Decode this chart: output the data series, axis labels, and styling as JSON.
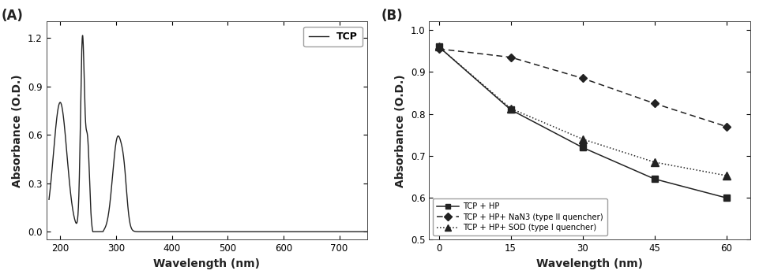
{
  "panel_A": {
    "label": "(A)",
    "xlabel": "Wavelength (nm)",
    "ylabel": "Absorbance (O.D.)",
    "xlim": [
      175,
      750
    ],
    "ylim": [
      -0.05,
      1.3
    ],
    "yticks": [
      0.0,
      0.3,
      0.6,
      0.9,
      1.2
    ],
    "xticks": [
      200,
      300,
      400,
      500,
      600,
      700
    ],
    "legend_label": "TCP",
    "line_color": "#222222"
  },
  "panel_B": {
    "label": "(B)",
    "xlabel": "Wavelength (nm)",
    "ylabel": "Absorbance (O.D.)",
    "xlim": [
      -2,
      65
    ],
    "ylim": [
      0.5,
      1.02
    ],
    "yticks": [
      0.5,
      0.6,
      0.7,
      0.8,
      0.9,
      1.0
    ],
    "xticks": [
      0,
      15,
      30,
      45,
      60
    ],
    "series": {
      "tcp_hp": {
        "x": [
          0,
          15,
          30,
          45,
          60
        ],
        "y": [
          0.96,
          0.81,
          0.72,
          0.645,
          0.6
        ],
        "label": "TCP + HP",
        "color": "#222222",
        "linestyle": "-",
        "marker": "s"
      },
      "tcp_hp_nan3": {
        "x": [
          0,
          15,
          30,
          45,
          60
        ],
        "y": [
          0.955,
          0.935,
          0.885,
          0.825,
          0.77
        ],
        "label": "TCP + HP+ NaN3 (type II quencher)",
        "color": "#222222",
        "linestyle": "--",
        "marker": "D"
      },
      "tcp_hp_sod": {
        "x": [
          0,
          15,
          30,
          45,
          60
        ],
        "y": [
          0.96,
          0.813,
          0.74,
          0.685,
          0.653
        ],
        "label": "TCP + HP+ SOD (type I quencher)",
        "color": "#222222",
        "linestyle": ":",
        "marker": "^"
      }
    }
  },
  "background_color": "#ffffff",
  "font_color": "#222222"
}
